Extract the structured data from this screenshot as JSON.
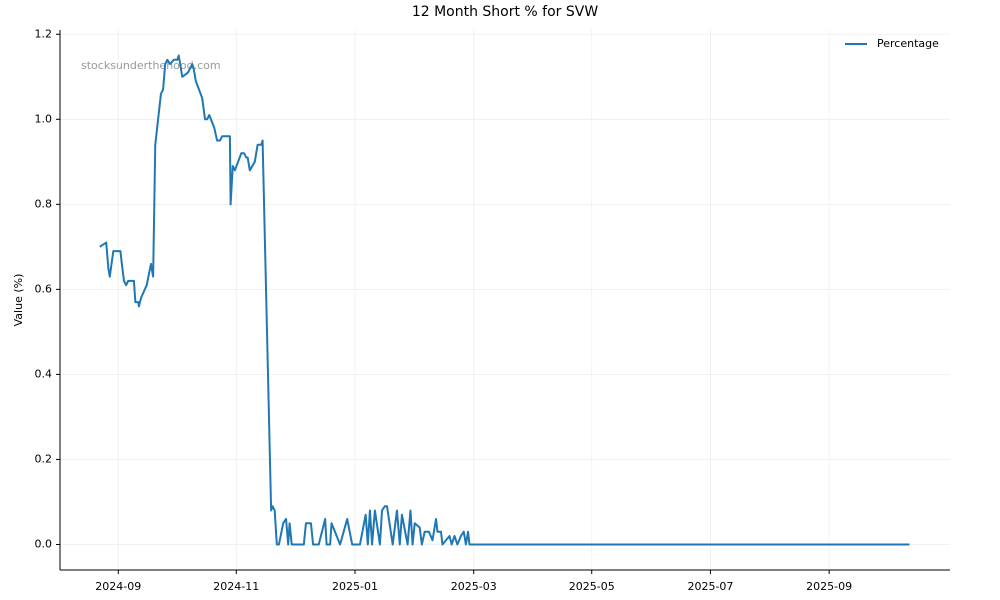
{
  "chart_data": {
    "type": "line",
    "title": "12 Month Short % for SVW",
    "ylabel": "Value (%)",
    "watermark": "stocksunderthehood.com",
    "x": [
      2024.641,
      2024.65,
      2024.653,
      2024.655,
      2024.66,
      2024.67,
      2024.672,
      2024.675,
      2024.678,
      2024.681,
      2024.689,
      2024.691,
      2024.695,
      2024.696,
      2024.699,
      2024.707,
      2024.713,
      2024.716,
      2024.719,
      2024.723,
      2024.727,
      2024.73,
      2024.733,
      2024.736,
      2024.74,
      2024.745,
      2024.75,
      2024.752,
      2024.757,
      2024.765,
      2024.771,
      2024.773,
      2024.776,
      2024.785,
      2024.789,
      2024.792,
      2024.795,
      2024.802,
      2024.806,
      2024.81,
      2024.813,
      2024.824,
      2024.825,
      2024.828,
      2024.831,
      2024.84,
      2024.844,
      2024.847,
      2024.849,
      2024.852,
      2024.859,
      2024.863,
      2024.868,
      2024.87,
      2024.882,
      2024.884,
      2024.887,
      2024.89,
      2024.893,
      2024.899,
      2024.903,
      2024.906,
      2024.908,
      2024.911,
      2024.928,
      2024.931,
      2024.938,
      2024.941,
      2024.949,
      2024.958,
      2024.96,
      2024.965,
      2024.967,
      2024.979,
      2024.989,
      2024.996,
      2025.007,
      2025.015,
      2025.018,
      2025.021,
      2025.024,
      2025.028,
      2025.035,
      2025.038,
      2025.042,
      2025.045,
      2025.053,
      2025.059,
      2025.063,
      2025.066,
      2025.074,
      2025.078,
      2025.081,
      2025.084,
      2025.091,
      2025.094,
      2025.098,
      2025.104,
      2025.109,
      2025.114,
      2025.116,
      2025.121,
      2025.123,
      2025.133,
      2025.136,
      2025.14,
      2025.144,
      2025.149,
      2025.153,
      2025.156,
      2025.159,
      2025.161,
      2025.78
    ],
    "series": [
      {
        "name": "Percentage",
        "color": "#1f77b4",
        "values": [
          0.7,
          0.71,
          0.65,
          0.63,
          0.69,
          0.69,
          0.66,
          0.62,
          0.61,
          0.62,
          0.62,
          0.57,
          0.57,
          0.56,
          0.58,
          0.61,
          0.66,
          0.63,
          0.94,
          1.0,
          1.06,
          1.07,
          1.13,
          1.14,
          1.13,
          1.14,
          1.14,
          1.15,
          1.1,
          1.11,
          1.13,
          1.12,
          1.09,
          1.05,
          1.0,
          1.0,
          1.01,
          0.98,
          0.95,
          0.95,
          0.96,
          0.96,
          0.8,
          0.89,
          0.88,
          0.92,
          0.92,
          0.91,
          0.91,
          0.88,
          0.9,
          0.94,
          0.94,
          0.95,
          0.08,
          0.09,
          0.08,
          0.0,
          0.0,
          0.05,
          0.06,
          0.0,
          0.05,
          0.0,
          0.0,
          0.05,
          0.05,
          0.0,
          0.0,
          0.06,
          0.0,
          0.0,
          0.05,
          0.0,
          0.06,
          0.0,
          0.0,
          0.07,
          0.0,
          0.08,
          0.0,
          0.08,
          0.0,
          0.08,
          0.09,
          0.09,
          0.0,
          0.08,
          0.0,
          0.07,
          0.0,
          0.08,
          0.0,
          0.05,
          0.04,
          0.0,
          0.03,
          0.03,
          0.01,
          0.06,
          0.03,
          0.03,
          0.0,
          0.02,
          0.0,
          0.02,
          0.0,
          0.02,
          0.03,
          0.0,
          0.03,
          0.0,
          0.0
        ]
      }
    ],
    "xlim": [
      2024.585,
      2025.837
    ],
    "xticks": [
      {
        "value": 2024.667,
        "label": "2024-09"
      },
      {
        "value": 2024.833,
        "label": "2024-11"
      },
      {
        "value": 2025.0,
        "label": "2025-01"
      },
      {
        "value": 2025.167,
        "label": "2025-03"
      },
      {
        "value": 2025.333,
        "label": "2025-05"
      },
      {
        "value": 2025.5,
        "label": "2025-07"
      },
      {
        "value": 2025.667,
        "label": "2025-09"
      }
    ],
    "ylim": [
      -0.06,
      1.21
    ],
    "yticks": [
      {
        "value": 0,
        "label": "0.0"
      },
      0.2,
      0.4,
      0.6,
      0.8,
      {
        "value": 1,
        "label": "1.0"
      },
      1.2
    ],
    "grid": true,
    "legend": "upper right"
  }
}
